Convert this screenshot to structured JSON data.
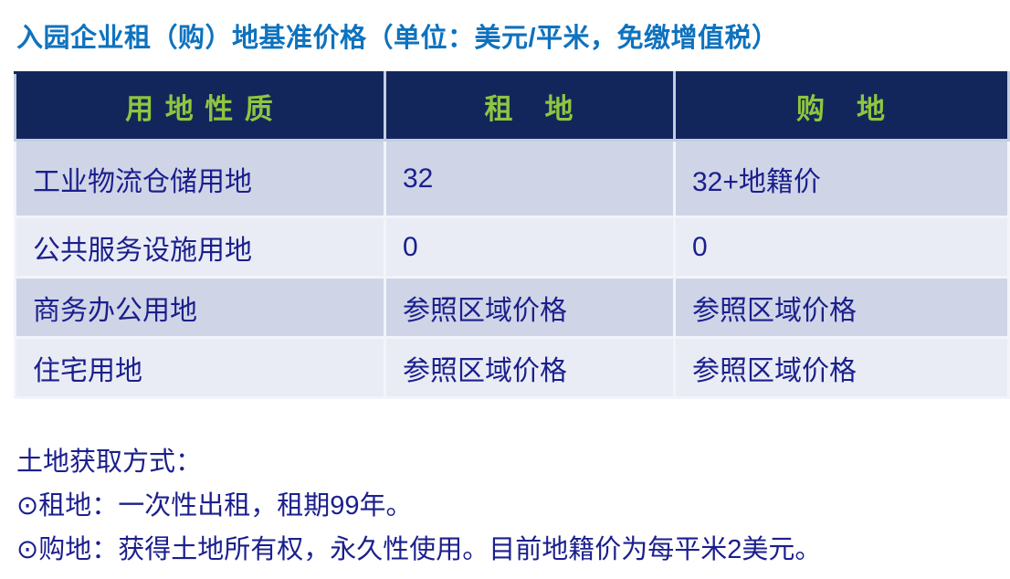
{
  "title": "入园企业租（购）地基准价格（单位：美元/平米，免缴增值税）",
  "colors": {
    "title_blue": "#0E72BE",
    "header_bg": "#13265C",
    "header_text_green": "#8DC63F",
    "body_text_navy": "#1B1F8C",
    "row_band_dark": "#CFD5E7",
    "row_band_light": "#E9ECF4",
    "table_outline": "#A9BBD6"
  },
  "table": {
    "columns": [
      "用 地 性 质",
      "租　地",
      "购　地"
    ],
    "rows": [
      [
        "工业物流仓储用地",
        "32",
        "32+地籍价"
      ],
      [
        "公共服务设施用地",
        "0",
        "0"
      ],
      [
        "商务办公用地",
        "参照区域价格",
        "参照区域价格"
      ],
      [
        "住宅用地",
        "参照区域价格",
        "参照区域价格"
      ]
    ]
  },
  "notes": {
    "heading": "土地获取方式：",
    "items": [
      "⊙租地：一次性出租，租期99年。",
      "⊙购地：获得土地所有权，永久性使用。目前地籍价为每平米2美元。"
    ]
  }
}
